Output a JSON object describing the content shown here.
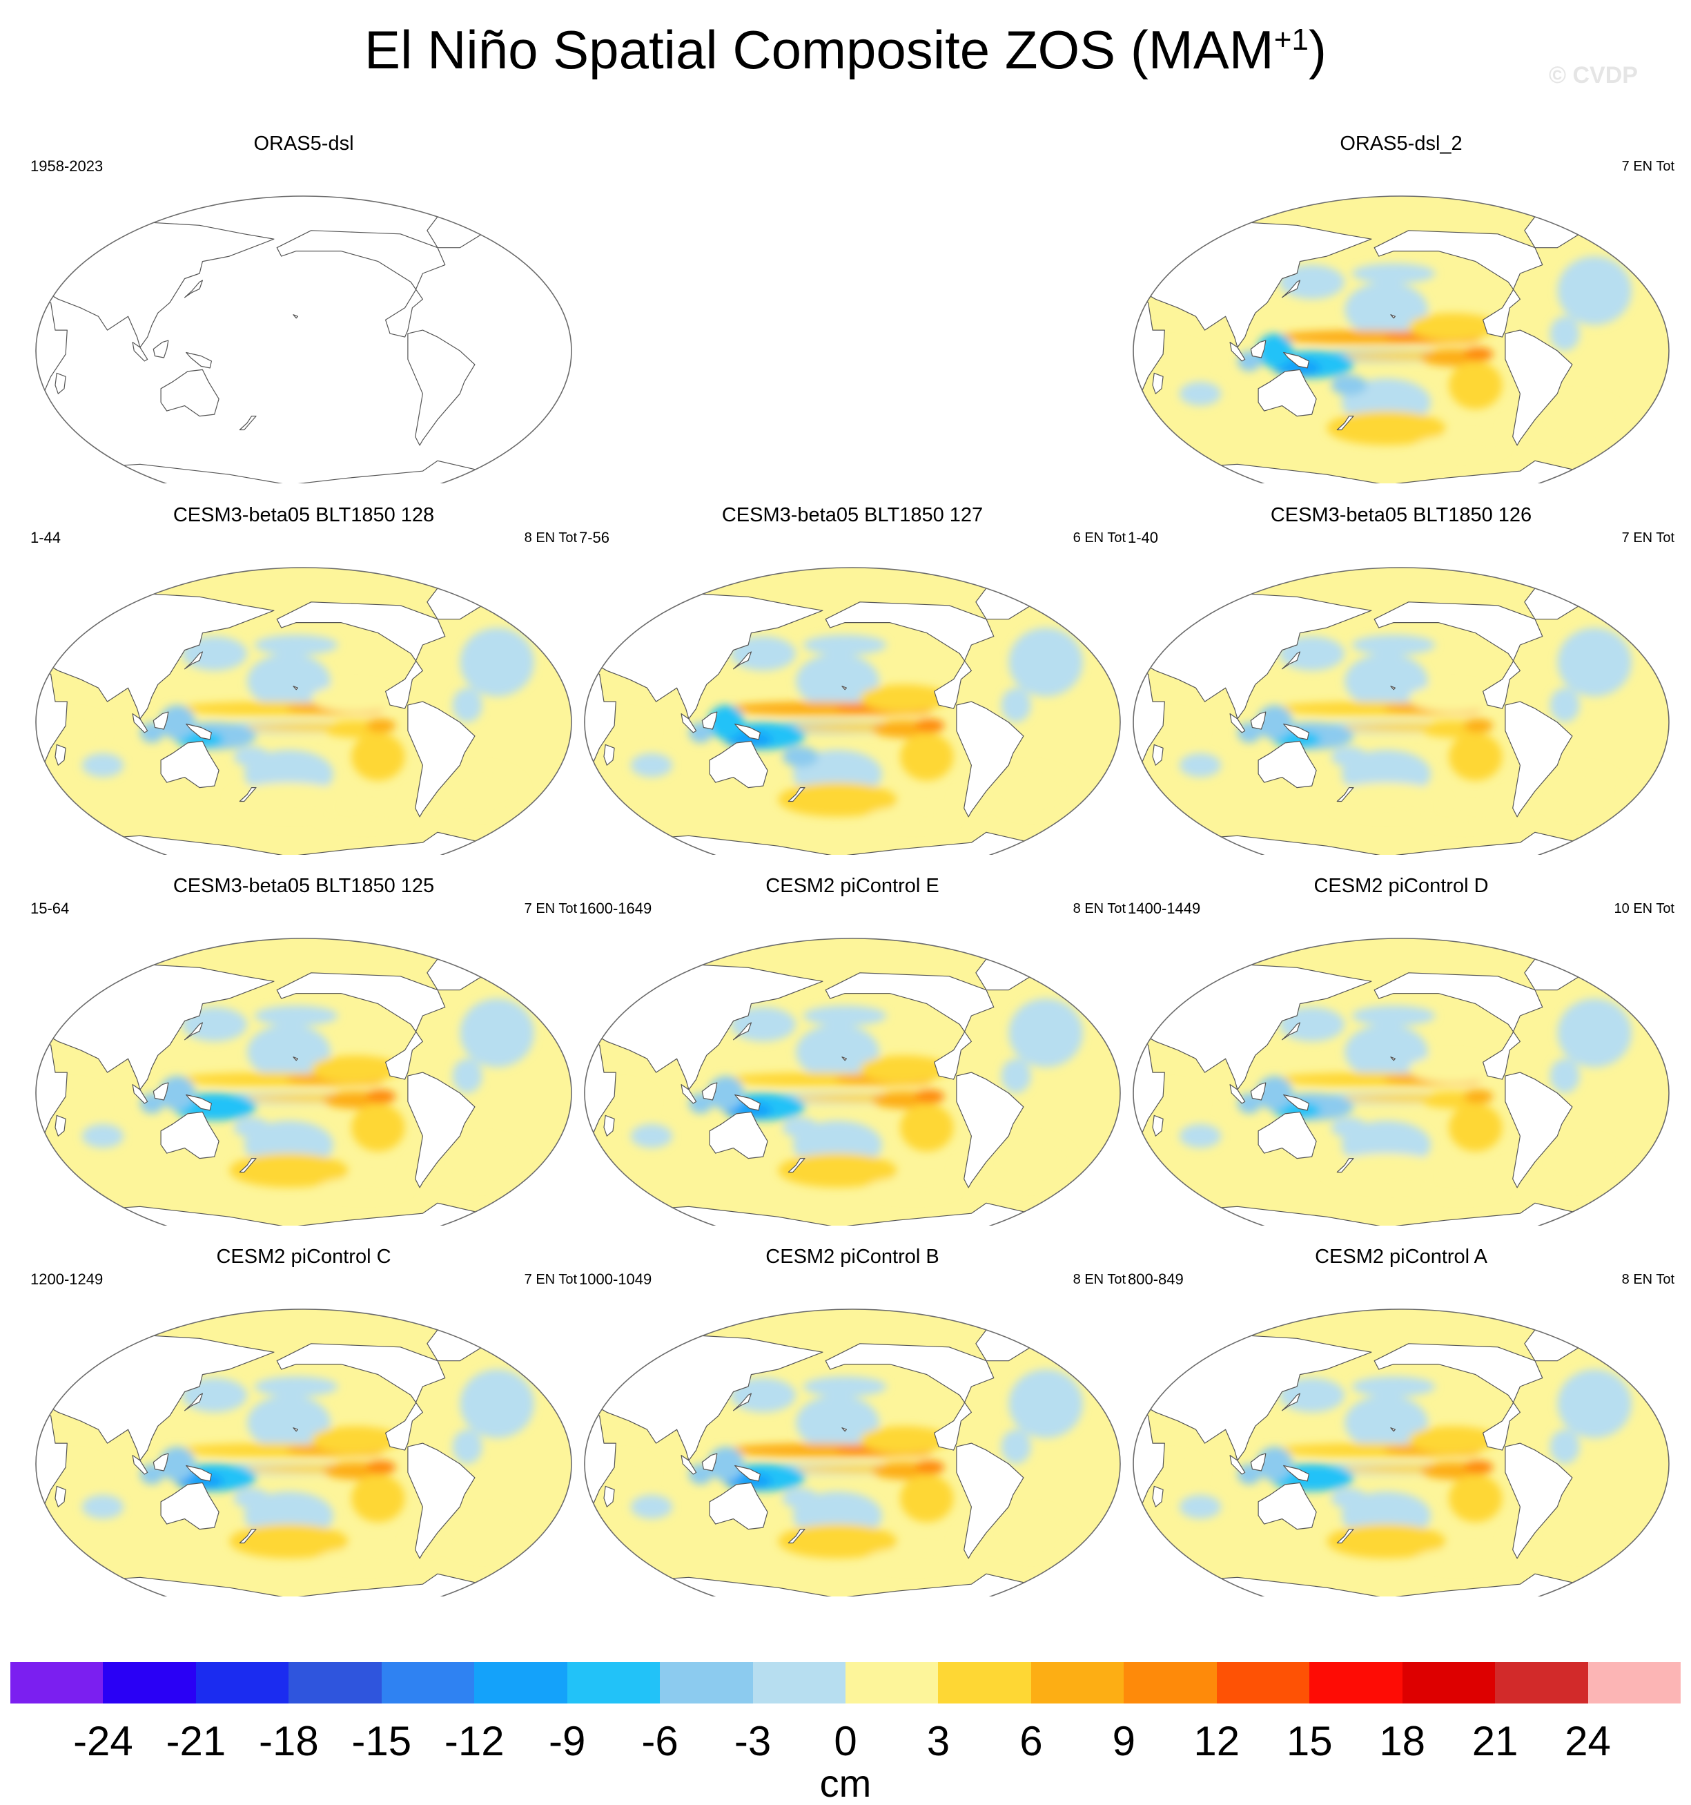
{
  "figure": {
    "title_main": "El Niño Spatial Composite ZOS (MAM",
    "title_sup": "+1",
    "title_close": ")",
    "watermark": "© CVDP"
  },
  "chart_data": {
    "type": "heatmap",
    "projection": "robinson",
    "variable": "ZOS",
    "season": "MAM+1",
    "units": "cm",
    "colorbar": {
      "levels": [
        -24,
        -21,
        -18,
        -15,
        -12,
        -9,
        -6,
        -3,
        0,
        3,
        6,
        9,
        12,
        15,
        18,
        21,
        24
      ],
      "tick_labels": [
        "-24",
        "-21",
        "-18",
        "-15",
        "-12",
        "-9",
        "-6",
        "-3",
        "0",
        "3",
        "6",
        "9",
        "12",
        "15",
        "18",
        "21",
        "24"
      ],
      "colors": [
        "#7b1ff0",
        "#2a00f5",
        "#1b2cf0",
        "#2f55dd",
        "#2f82f2",
        "#14a2fa",
        "#22c2f8",
        "#8ccbef",
        "#b7def0",
        "#fdf59a",
        "#fed734",
        "#fdae14",
        "#fe8a0a",
        "#fe5205",
        "#fe0c05",
        "#dd0000",
        "#d22a2a",
        "#fcb5b5"
      ],
      "label": "cm"
    },
    "panels": [
      {
        "title": "ORAS5-dsl",
        "left": "1958-2023",
        "right": "",
        "filled": false,
        "intensity": 0
      },
      {
        "title": "ORAS5-dsl_2",
        "left": "",
        "right": "7 EN Tot",
        "filled": true,
        "intensity": 1.15
      },
      {
        "title": "CESM3-beta05 BLT1850 128",
        "left": "1-44",
        "right": "8 EN Tot",
        "filled": true,
        "intensity": 0.85
      },
      {
        "title": "CESM3-beta05 BLT1850 127",
        "left": "7-56",
        "right": "6 EN Tot",
        "filled": true,
        "intensity": 1.1
      },
      {
        "title": "CESM3-beta05 BLT1850 126",
        "left": "1-40",
        "right": "7 EN Tot",
        "filled": true,
        "intensity": 0.8
      },
      {
        "title": "CESM3-beta05 BLT1850 125",
        "left": "15-64",
        "right": "7 EN Tot",
        "filled": true,
        "intensity": 0.9
      },
      {
        "title": "CESM2 piControl E",
        "left": "1600-1649",
        "right": "8 EN Tot",
        "filled": true,
        "intensity": 0.95
      },
      {
        "title": "CESM2 piControl D",
        "left": "1400-1449",
        "right": "10 EN Tot",
        "filled": true,
        "intensity": 0.85
      },
      {
        "title": "CESM2 piControl C",
        "left": "1200-1249",
        "right": "7 EN Tot",
        "filled": true,
        "intensity": 0.95
      },
      {
        "title": "CESM2 piControl B",
        "left": "1000-1049",
        "right": "8 EN Tot",
        "filled": true,
        "intensity": 1.0
      },
      {
        "title": "CESM2 piControl A",
        "left": "800-849",
        "right": "8 EN Tot",
        "filled": true,
        "intensity": 0.9
      }
    ]
  }
}
